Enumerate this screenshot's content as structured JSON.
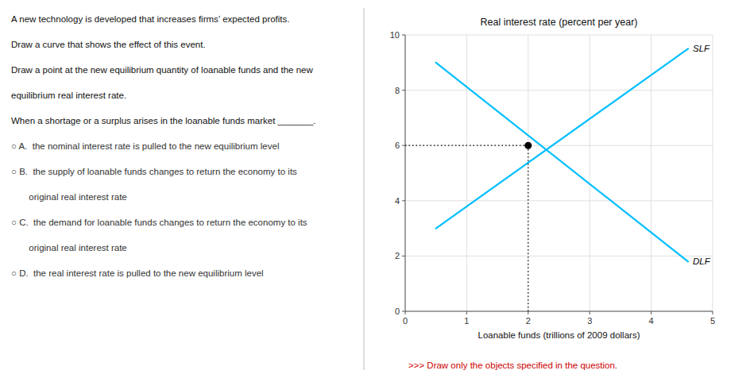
{
  "chart_data": {
    "type": "line",
    "title": "Real interest rate (percent per year)",
    "xlabel": "Loanable funds (trillions of 2009 dollars)",
    "xlim": [
      0,
      5
    ],
    "ylim": [
      0,
      10
    ],
    "xticks": [
      0,
      1,
      2,
      3,
      4,
      5
    ],
    "yticks": [
      0,
      2,
      4,
      6,
      8,
      10
    ],
    "grid": true,
    "series": [
      {
        "name": "SLF",
        "type": "line",
        "color": "#00BFFF",
        "x": [
          0.5,
          4.6
        ],
        "values": [
          3.0,
          9.5
        ]
      },
      {
        "name": "DLF",
        "type": "line",
        "color": "#00BFFF",
        "x": [
          0.5,
          4.6
        ],
        "values": [
          9.0,
          1.8
        ]
      },
      {
        "type": "scatter",
        "marker": "circle",
        "color": "#000000",
        "x": [
          2.0
        ],
        "values": [
          6.0
        ]
      }
    ],
    "annotations": [
      {
        "text": "A new technology is developed that increases firms’ expected profits.",
        "color": "#111111"
      },
      {
        "text": "Draw a curve that shows the effect of this event.",
        "color": "#111111"
      },
      {
        "text": "Draw a point at the new equilibrium quantity of loanable funds and the new",
        "color": "#111111"
      },
      {
        "text": "equilibrium real interest rate.",
        "color": "#111111"
      },
      {
        "text": "When a shortage or a surplus arises in the loanable funds market _______.",
        "color": "#111111"
      },
      {
        "text": "○ A.  the nominal interest rate is pulled to the new equilibrium level",
        "color": "#333333"
      },
      {
        "text": "○ B.  the supply of loanable funds changes to return the economy to its",
        "color": "#333333"
      },
      {
        "text": "       original real interest rate",
        "color": "#333333"
      },
      {
        "text": "○ C.  the demand for loanable funds changes to return the economy to its",
        "color": "#333333"
      },
      {
        "text": "       original real interest rate",
        "color": "#333333"
      },
      {
        "text": "○ D.  the real interest rate is pulled to the new equilibrium level",
        "color": "#333333"
      }
    ],
    "footer": {
      "text": ">>> Draw only the objects specified in the question.",
      "color": "#cc0000"
    }
  }
}
